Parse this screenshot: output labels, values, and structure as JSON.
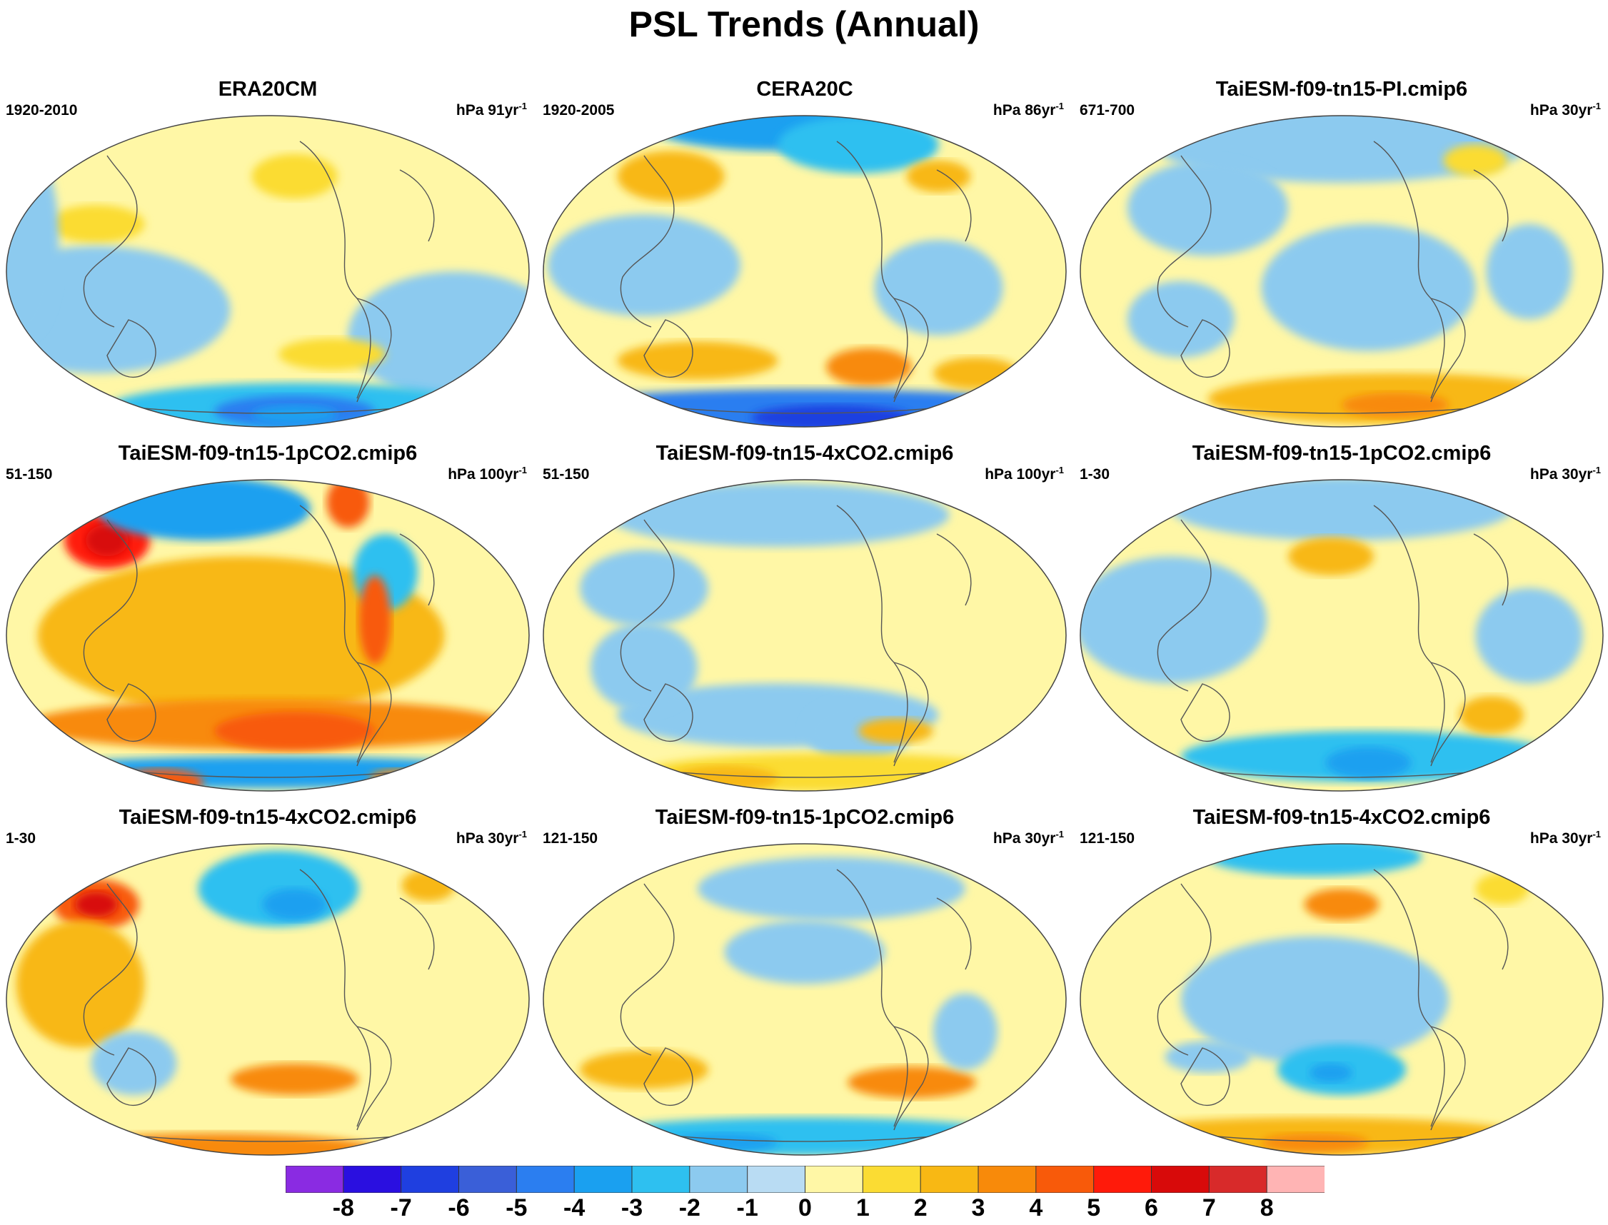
{
  "title": "PSL Trends (Annual)",
  "colors": {
    "ocean_neutral_pos": "#fff7a6",
    "ocean_neutral_neg": "#b9dcf3",
    "coast": "#555555"
  },
  "panels": [
    {
      "title": "ERA20CM",
      "period": "1920-2010",
      "units_prefix": "hPa 91yr",
      "units_exp": "-1",
      "fills": [
        [
          "r",
          0.18,
          0.35,
          0.09,
          0.06,
          1
        ],
        [
          "r",
          0.55,
          0.2,
          0.08,
          0.07,
          1
        ],
        [
          "b",
          0.18,
          0.62,
          0.25,
          0.2,
          -1
        ],
        [
          "b",
          0.85,
          0.7,
          0.2,
          0.2,
          -1
        ],
        [
          "b",
          0.55,
          0.93,
          0.35,
          0.08,
          -2
        ],
        [
          "b",
          0.55,
          0.94,
          0.15,
          0.05,
          -4
        ],
        [
          "b",
          0.55,
          0.95,
          0.08,
          0.03,
          -3
        ],
        [
          "r",
          0.62,
          0.76,
          0.1,
          0.05,
          1
        ],
        [
          "b",
          0.05,
          0.4,
          0.06,
          0.3,
          -1
        ]
      ]
    },
    {
      "title": "CERA20C",
      "period": "1920-2005",
      "units_prefix": "hPa 86yr",
      "units_exp": "-1",
      "fills": [
        [
          "b",
          0.45,
          0.03,
          0.25,
          0.09,
          -3
        ],
        [
          "b",
          0.6,
          0.1,
          0.15,
          0.09,
          -2
        ],
        [
          "r",
          0.25,
          0.2,
          0.1,
          0.08,
          2
        ],
        [
          "r",
          0.75,
          0.2,
          0.06,
          0.05,
          2
        ],
        [
          "b",
          0.2,
          0.48,
          0.18,
          0.16,
          -1
        ],
        [
          "b",
          0.75,
          0.55,
          0.12,
          0.15,
          -1
        ],
        [
          "r",
          0.3,
          0.78,
          0.15,
          0.06,
          2
        ],
        [
          "r",
          0.62,
          0.8,
          0.08,
          0.06,
          3
        ],
        [
          "b",
          0.5,
          0.95,
          0.55,
          0.08,
          -4
        ],
        [
          "b",
          0.55,
          0.96,
          0.15,
          0.04,
          -6
        ],
        [
          "r",
          0.82,
          0.82,
          0.08,
          0.05,
          2
        ]
      ]
    },
    {
      "title": "TaiESM-f09-tn15-PI.cmip6",
      "period": "671-700",
      "units_prefix": "hPa 30yr",
      "units_exp": "-1",
      "fills": [
        [
          "b",
          0.5,
          0.1,
          0.35,
          0.12,
          -1
        ],
        [
          "r",
          0.75,
          0.15,
          0.06,
          0.05,
          1
        ],
        [
          "b",
          0.25,
          0.3,
          0.15,
          0.15,
          -1
        ],
        [
          "b",
          0.55,
          0.55,
          0.2,
          0.2,
          -1
        ],
        [
          "b",
          0.85,
          0.5,
          0.08,
          0.15,
          -1
        ],
        [
          "r",
          0.6,
          0.9,
          0.35,
          0.08,
          2
        ],
        [
          "r",
          0.6,
          0.92,
          0.1,
          0.04,
          3
        ],
        [
          "b",
          0.2,
          0.65,
          0.1,
          0.12,
          -1
        ]
      ]
    },
    {
      "title": "TaiESM-f09-tn15-1pCO2.cmip6",
      "period": "51-150",
      "units_prefix": "hPa 100yr",
      "units_exp": "-1",
      "fills": [
        [
          "r",
          0.2,
          0.2,
          0.08,
          0.09,
          5
        ],
        [
          "r",
          0.2,
          0.2,
          0.04,
          0.05,
          6
        ],
        [
          "b",
          0.38,
          0.1,
          0.2,
          0.1,
          -3
        ],
        [
          "r",
          0.65,
          0.08,
          0.04,
          0.08,
          4
        ],
        [
          "r",
          0.45,
          0.5,
          0.38,
          0.25,
          2
        ],
        [
          "b",
          0.72,
          0.3,
          0.06,
          0.12,
          -2
        ],
        [
          "r",
          0.7,
          0.45,
          0.03,
          0.14,
          4
        ],
        [
          "r",
          0.5,
          0.78,
          0.45,
          0.08,
          3
        ],
        [
          "r",
          0.55,
          0.8,
          0.15,
          0.06,
          4
        ],
        [
          "b",
          0.5,
          0.93,
          0.48,
          0.05,
          -3
        ],
        [
          "r",
          0.3,
          0.96,
          0.08,
          0.04,
          4
        ],
        [
          "r",
          0.75,
          0.95,
          0.06,
          0.03,
          3
        ]
      ]
    },
    {
      "title": "TaiESM-f09-tn15-4xCO2.cmip6",
      "period": "51-150",
      "units_prefix": "hPa 100yr",
      "units_exp": "-1",
      "fills": [
        [
          "b",
          0.45,
          0.12,
          0.32,
          0.1,
          -1
        ],
        [
          "b",
          0.2,
          0.35,
          0.12,
          0.12,
          -1
        ],
        [
          "b",
          0.45,
          0.75,
          0.3,
          0.1,
          -1
        ],
        [
          "b",
          0.6,
          0.8,
          0.1,
          0.1,
          -1
        ],
        [
          "r",
          0.55,
          0.93,
          0.35,
          0.06,
          1
        ],
        [
          "r",
          0.35,
          0.95,
          0.1,
          0.04,
          2
        ],
        [
          "r",
          0.67,
          0.8,
          0.07,
          0.04,
          2
        ],
        [
          "b",
          0.2,
          0.6,
          0.1,
          0.14,
          -1
        ]
      ]
    },
    {
      "title": "TaiESM-f09-tn15-1pCO2.cmip6",
      "period": "1-30",
      "units_prefix": "hPa 30yr",
      "units_exp": "-1",
      "fills": [
        [
          "b",
          0.5,
          0.1,
          0.32,
          0.1,
          -1
        ],
        [
          "r",
          0.48,
          0.25,
          0.08,
          0.06,
          2
        ],
        [
          "b",
          0.18,
          0.45,
          0.18,
          0.2,
          -1
        ],
        [
          "b",
          0.85,
          0.5,
          0.1,
          0.15,
          -1
        ],
        [
          "b",
          0.55,
          0.88,
          0.35,
          0.08,
          -2
        ],
        [
          "b",
          0.55,
          0.9,
          0.08,
          0.05,
          -3
        ],
        [
          "r",
          0.78,
          0.75,
          0.06,
          0.06,
          2
        ],
        [
          "r",
          0.88,
          0.1,
          0.05,
          0.05,
          1
        ]
      ]
    },
    {
      "title": "TaiESM-f09-tn15-4xCO2.cmip6",
      "period": "1-30",
      "units_prefix": "hPa 30yr",
      "units_exp": "-1",
      "fills": [
        [
          "r",
          0.18,
          0.2,
          0.08,
          0.08,
          4
        ],
        [
          "r",
          0.18,
          0.2,
          0.04,
          0.04,
          6
        ],
        [
          "r",
          0.15,
          0.45,
          0.12,
          0.2,
          2
        ],
        [
          "b",
          0.52,
          0.15,
          0.15,
          0.12,
          -2
        ],
        [
          "b",
          0.55,
          0.2,
          0.06,
          0.05,
          -3
        ],
        [
          "r",
          0.8,
          0.14,
          0.05,
          0.05,
          2
        ],
        [
          "r",
          0.55,
          0.75,
          0.12,
          0.05,
          3
        ],
        [
          "r",
          0.4,
          0.97,
          0.3,
          0.05,
          3
        ],
        [
          "b",
          0.25,
          0.7,
          0.08,
          0.1,
          -1
        ]
      ]
    },
    {
      "title": "TaiESM-f09-tn15-1pCO2.cmip6",
      "period": "121-150",
      "units_prefix": "hPa 30yr",
      "units_exp": "-1",
      "fills": [
        [
          "b",
          0.55,
          0.15,
          0.25,
          0.1,
          -1
        ],
        [
          "b",
          0.5,
          0.35,
          0.15,
          0.1,
          -1
        ],
        [
          "r",
          0.2,
          0.72,
          0.12,
          0.06,
          2
        ],
        [
          "r",
          0.7,
          0.76,
          0.12,
          0.05,
          3
        ],
        [
          "b",
          0.5,
          0.93,
          0.4,
          0.06,
          -2
        ],
        [
          "b",
          0.35,
          0.95,
          0.1,
          0.03,
          -3
        ],
        [
          "b",
          0.8,
          0.6,
          0.06,
          0.12,
          -1
        ]
      ]
    },
    {
      "title": "TaiESM-f09-tn15-4xCO2.cmip6",
      "period": "121-150",
      "units_prefix": "hPa 30yr",
      "units_exp": "-1",
      "fills": [
        [
          "b",
          0.45,
          0.05,
          0.2,
          0.06,
          -2
        ],
        [
          "r",
          0.5,
          0.2,
          0.07,
          0.05,
          3
        ],
        [
          "b",
          0.45,
          0.5,
          0.25,
          0.2,
          -1
        ],
        [
          "b",
          0.5,
          0.72,
          0.12,
          0.08,
          -2
        ],
        [
          "b",
          0.48,
          0.73,
          0.04,
          0.03,
          -3
        ],
        [
          "b",
          0.25,
          0.68,
          0.08,
          0.05,
          -1
        ],
        [
          "r",
          0.45,
          0.93,
          0.4,
          0.06,
          2
        ],
        [
          "r",
          0.45,
          0.95,
          0.1,
          0.03,
          3
        ],
        [
          "r",
          0.8,
          0.15,
          0.05,
          0.05,
          1
        ]
      ]
    }
  ],
  "colorbar": {
    "colors": [
      "#8a2be2",
      "#2a0fe0",
      "#1f3fe0",
      "#3a5fd8",
      "#2b7ef0",
      "#1aa0f0",
      "#2ec0f0",
      "#8ccaef",
      "#b9dcf3",
      "#fff7a6",
      "#fbdc33",
      "#f8b814",
      "#f88a0a",
      "#f85a0a",
      "#ff1a0a",
      "#d80a0a",
      "#d82a2a",
      "#ffb4b4"
    ],
    "labels": [
      "-8",
      "-7",
      "-6",
      "-5",
      "-4",
      "-3",
      "-2",
      "-1",
      "0",
      "1",
      "2",
      "3",
      "4",
      "5",
      "6",
      "7",
      "8"
    ]
  }
}
